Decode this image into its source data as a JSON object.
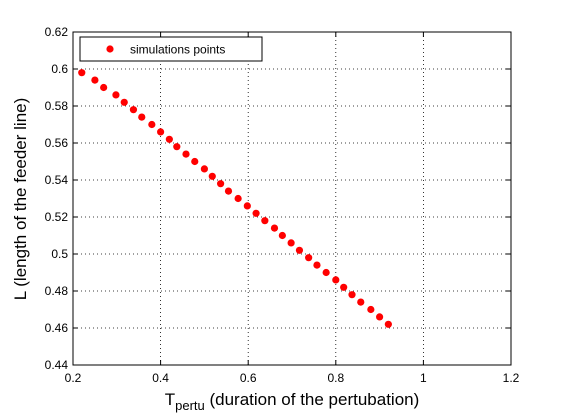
{
  "chart_data": {
    "type": "scatter",
    "xlabel_main": "T",
    "xlabel_sub": "pertu",
    "xlabel_rest": " (duration of the pertubation)",
    "ylabel": "L (length of the feeder line)",
    "xlim": [
      0.2,
      1.2
    ],
    "ylim": [
      0.44,
      0.62
    ],
    "x_ticks": [
      "0.2",
      "0.4",
      "0.6",
      "0.8",
      "1",
      "1.2"
    ],
    "y_ticks": [
      "0.44",
      "0.46",
      "0.48",
      "0.5",
      "0.52",
      "0.54",
      "0.56",
      "0.58",
      "0.6",
      "0.62"
    ],
    "grid": true,
    "legend_position": "top-left",
    "series": [
      {
        "name": "simulations points",
        "color": "#ff0000",
        "marker": "circle",
        "points": [
          [
            0.22,
            0.598
          ],
          [
            0.25,
            0.594
          ],
          [
            0.27,
            0.59
          ],
          [
            0.298,
            0.586
          ],
          [
            0.317,
            0.582
          ],
          [
            0.338,
            0.578
          ],
          [
            0.357,
            0.574
          ],
          [
            0.38,
            0.57
          ],
          [
            0.4,
            0.566
          ],
          [
            0.42,
            0.562
          ],
          [
            0.437,
            0.558
          ],
          [
            0.458,
            0.554
          ],
          [
            0.478,
            0.55
          ],
          [
            0.5,
            0.546
          ],
          [
            0.518,
            0.542
          ],
          [
            0.537,
            0.538
          ],
          [
            0.555,
            0.534
          ],
          [
            0.577,
            0.53
          ],
          [
            0.598,
            0.526
          ],
          [
            0.618,
            0.522
          ],
          [
            0.638,
            0.518
          ],
          [
            0.66,
            0.514
          ],
          [
            0.678,
            0.51
          ],
          [
            0.698,
            0.506
          ],
          [
            0.717,
            0.502
          ],
          [
            0.738,
            0.498
          ],
          [
            0.757,
            0.494
          ],
          [
            0.778,
            0.49
          ],
          [
            0.8,
            0.486
          ],
          [
            0.818,
            0.482
          ],
          [
            0.837,
            0.478
          ],
          [
            0.857,
            0.474
          ],
          [
            0.88,
            0.47
          ],
          [
            0.9,
            0.466
          ],
          [
            0.92,
            0.462
          ]
        ]
      }
    ]
  }
}
